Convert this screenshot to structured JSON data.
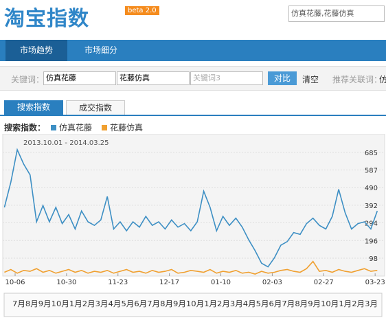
{
  "header": {
    "logo": "淘宝指数",
    "badge": "beta 2.0",
    "search": "仿真花藤,花藤仿真"
  },
  "nav": [
    "市场趋势",
    "市场细分"
  ],
  "keywords": {
    "label": "关键词：",
    "inputs": [
      "仿真花藤",
      "花藤仿真",
      "关键词3"
    ],
    "compare": "对比",
    "clear": "清空",
    "related_label": "推荐关联词：",
    "related_first": "仿"
  },
  "tabs": [
    "搜索指数",
    "成交指数"
  ],
  "timeline": "7月8月9月10月1月2月3月4月5月6月7月8月9月10月1月2月3月4月5月6月7月8月9月10月1月2月3月",
  "chart_data": {
    "type": "line",
    "legend_title": "搜索指数：",
    "subtitle": "2013.10.01 - 2014.03.25",
    "x": [
      0,
      3,
      6,
      9,
      12,
      15,
      18,
      21,
      24,
      27,
      30,
      33,
      36,
      39,
      42,
      45,
      48,
      51,
      54,
      57,
      60,
      63,
      66,
      69,
      72,
      75,
      78,
      81,
      84,
      87,
      90,
      93,
      96,
      99,
      102,
      105,
      108,
      111,
      114,
      117,
      120,
      123,
      126,
      129,
      132,
      135,
      138,
      141,
      144,
      147,
      150,
      153,
      156,
      159,
      162,
      165,
      168,
      171,
      174
    ],
    "xlim": [
      0,
      178
    ],
    "xticks": [
      {
        "value": 5,
        "label": "10-06"
      },
      {
        "value": 29,
        "label": "10-30"
      },
      {
        "value": 53,
        "label": "11-23"
      },
      {
        "value": 77,
        "label": "12-17"
      },
      {
        "value": 101,
        "label": "01-10"
      },
      {
        "value": 125,
        "label": "02-03"
      },
      {
        "value": 149,
        "label": "02-27"
      },
      {
        "value": 173,
        "label": "03-23"
      }
    ],
    "ylim": [
      0,
      780
    ],
    "yticks": [
      98,
      196,
      294,
      392,
      490,
      587,
      685
    ],
    "grid": true,
    "series": [
      {
        "name": "仿真花藤",
        "color": "#3d8fc4",
        "values": [
          380,
          520,
          700,
          620,
          560,
          300,
          390,
          300,
          380,
          290,
          340,
          260,
          360,
          300,
          280,
          310,
          440,
          260,
          300,
          250,
          300,
          270,
          330,
          280,
          300,
          260,
          310,
          270,
          290,
          250,
          300,
          470,
          380,
          250,
          330,
          280,
          320,
          270,
          200,
          140,
          70,
          50,
          100,
          170,
          190,
          240,
          230,
          290,
          320,
          280,
          260,
          330,
          480,
          350,
          260,
          290,
          300,
          260,
          360
        ]
      },
      {
        "name": "花藤仿真",
        "color": "#f0a030",
        "values": [
          20,
          35,
          15,
          30,
          25,
          40,
          20,
          30,
          15,
          25,
          35,
          20,
          30,
          15,
          25,
          20,
          30,
          15,
          25,
          35,
          20,
          25,
          15,
          30,
          20,
          25,
          35,
          15,
          20,
          30,
          25,
          20,
          35,
          15,
          25,
          20,
          30,
          15,
          20,
          10,
          25,
          15,
          20,
          30,
          35,
          25,
          20,
          40,
          80,
          25,
          30,
          20,
          35,
          25,
          20,
          30,
          40,
          25,
          30
        ]
      }
    ]
  }
}
